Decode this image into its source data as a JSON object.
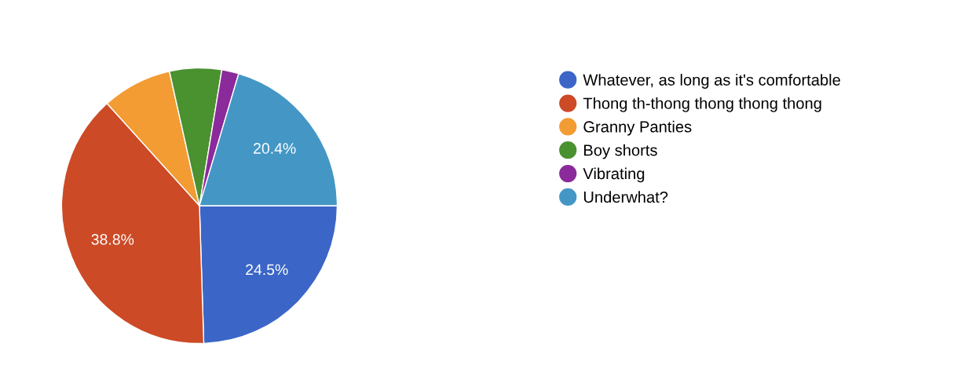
{
  "chart_data": {
    "type": "pie",
    "categories": [
      "Whatever, as long as it's comfortable",
      "Thong th-thong thong thong thong",
      "Granny Panties",
      "Boy shorts",
      "Vibrating",
      "Underwhat?"
    ],
    "values": [
      24.5,
      38.8,
      8.2,
      6.1,
      2.0,
      20.4
    ],
    "value_labels": [
      "24.5%",
      "38.8%",
      null,
      null,
      null,
      "20.4%"
    ],
    "colors": [
      "#3b66c7",
      "#cc4a25",
      "#f29c33",
      "#4a9130",
      "#8b2a9a",
      "#4497c5"
    ],
    "legend": "right"
  }
}
